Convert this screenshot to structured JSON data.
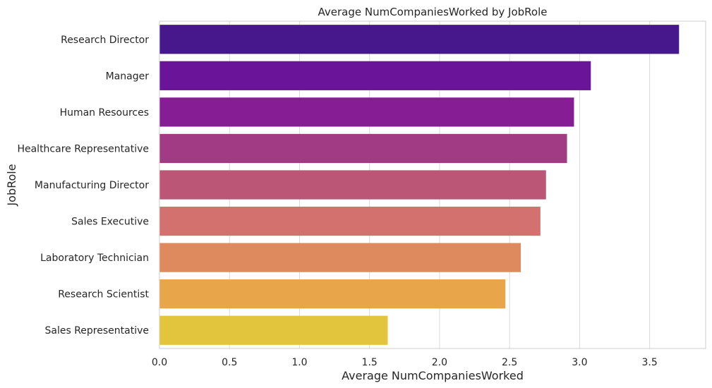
{
  "chart_data": {
    "type": "bar",
    "orientation": "horizontal",
    "title": "Average NumCompaniesWorked by JobRole",
    "xlabel": "Average NumCompaniesWorked",
    "ylabel": "JobRole",
    "xlim": [
      0,
      3.9
    ],
    "xticks": [
      "0.0",
      "0.5",
      "1.0",
      "1.5",
      "2.0",
      "2.5",
      "3.0",
      "3.5"
    ],
    "grid": true,
    "categories": [
      "Research Director",
      "Manager",
      "Human Resources",
      "Healthcare Representative",
      "Manufacturing Director",
      "Sales Executive",
      "Laboratory Technician",
      "Research Scientist",
      "Sales Representative"
    ],
    "values": [
      3.71,
      3.08,
      2.96,
      2.91,
      2.76,
      2.72,
      2.58,
      2.47,
      1.63
    ],
    "colors": [
      "#46188b",
      "#6a1599",
      "#861d95",
      "#a03b84",
      "#bb5676",
      "#d2716e",
      "#df8a5e",
      "#e8a54a",
      "#e3c43d"
    ]
  }
}
